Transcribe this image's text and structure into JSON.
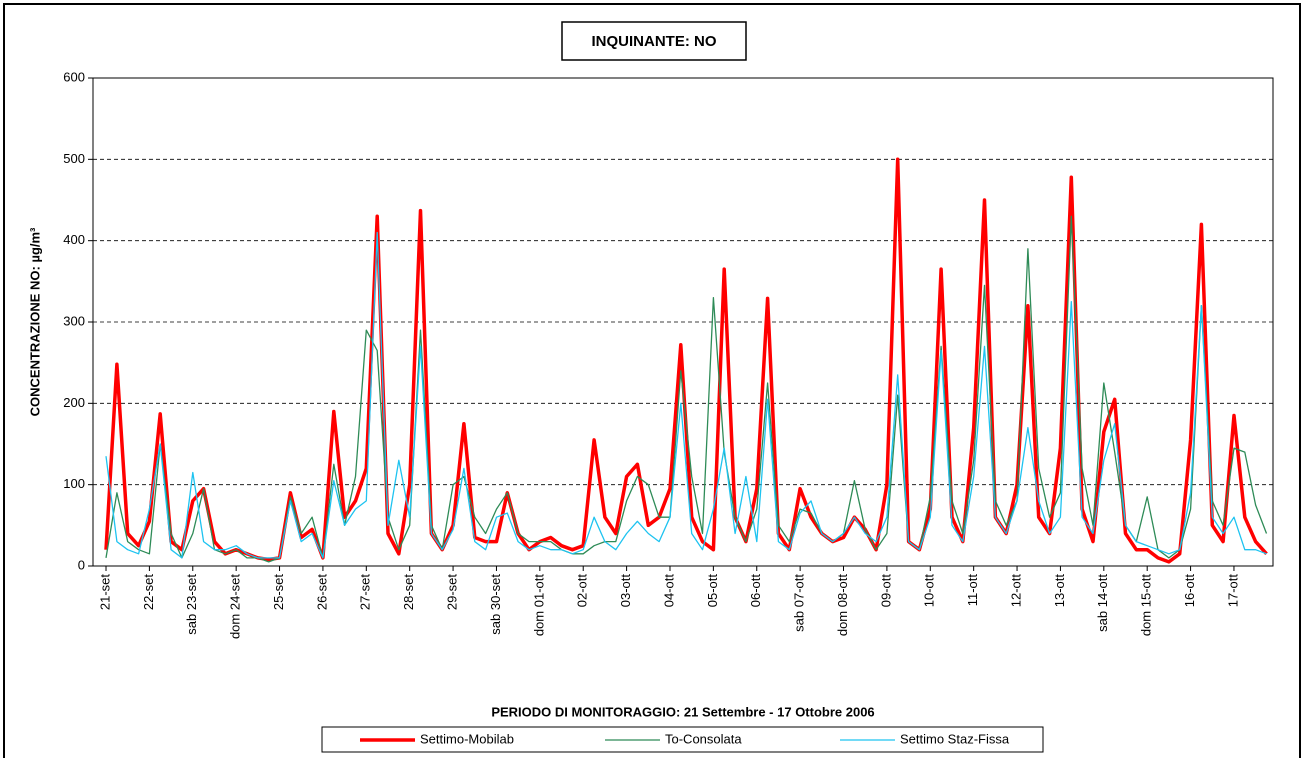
{
  "chart_data": {
    "type": "line",
    "title": "INQUINANTE: NO",
    "y_label": "CONCENTRAZIONE NO:  µg/m³",
    "x_label": "PERIODO DI MONITORAGGIO: 21 Settembre - 17 Ottobre 2006",
    "ylim": [
      0,
      600
    ],
    "yticks": [
      0,
      100,
      200,
      300,
      400,
      500,
      600
    ],
    "grid": true,
    "xlim": [
      -0.3,
      26.9
    ],
    "xticks": [
      {
        "value": 0,
        "label": "21-set"
      },
      {
        "value": 1,
        "label": "22-set"
      },
      {
        "value": 2,
        "label": "sab 23-set"
      },
      {
        "value": 3,
        "label": "dom 24-set"
      },
      {
        "value": 4,
        "label": "25-set"
      },
      {
        "value": 5,
        "label": "26-set"
      },
      {
        "value": 6,
        "label": "27-set"
      },
      {
        "value": 7,
        "label": "28-set"
      },
      {
        "value": 8,
        "label": "29-set"
      },
      {
        "value": 9,
        "label": "sab 30-set"
      },
      {
        "value": 10,
        "label": "dom 01-ott"
      },
      {
        "value": 11,
        "label": "02-ott"
      },
      {
        "value": 12,
        "label": "03-ott"
      },
      {
        "value": 13,
        "label": "04-ott"
      },
      {
        "value": 14,
        "label": "05-ott"
      },
      {
        "value": 15,
        "label": "06-ott"
      },
      {
        "value": 16,
        "label": "sab 07-ott"
      },
      {
        "value": 17,
        "label": "dom 08-ott"
      },
      {
        "value": 18,
        "label": "09-ott"
      },
      {
        "value": 19,
        "label": "10-ott"
      },
      {
        "value": 20,
        "label": "11-ott"
      },
      {
        "value": 21,
        "label": "12-ott"
      },
      {
        "value": 22,
        "label": "13-ott"
      },
      {
        "value": 23,
        "label": "sab 14-ott"
      },
      {
        "value": 24,
        "label": "dom 15-ott"
      },
      {
        "value": 25,
        "label": "16-ott"
      },
      {
        "value": 26,
        "label": "17-ott"
      }
    ],
    "x": [
      0,
      0.25,
      0.5,
      0.75,
      1,
      1.25,
      1.5,
      1.75,
      2,
      2.25,
      2.5,
      2.75,
      3,
      3.25,
      3.5,
      3.75,
      4,
      4.25,
      4.5,
      4.75,
      5,
      5.25,
      5.5,
      5.75,
      6,
      6.25,
      6.5,
      6.75,
      7,
      7.25,
      7.5,
      7.75,
      8,
      8.25,
      8.5,
      8.75,
      9,
      9.25,
      9.5,
      9.75,
      10,
      10.25,
      10.5,
      10.75,
      11,
      11.25,
      11.5,
      11.75,
      12,
      12.25,
      12.5,
      12.75,
      13,
      13.25,
      13.5,
      13.75,
      14,
      14.25,
      14.5,
      14.75,
      15,
      15.25,
      15.5,
      15.75,
      16,
      16.25,
      16.5,
      16.75,
      17,
      17.25,
      17.5,
      17.75,
      18,
      18.25,
      18.5,
      18.75,
      19,
      19.25,
      19.5,
      19.75,
      20,
      20.25,
      20.5,
      20.75,
      21,
      21.25,
      21.5,
      21.75,
      22,
      22.25,
      22.5,
      22.75,
      23,
      23.25,
      23.5,
      23.75,
      24,
      24.25,
      24.5,
      24.75,
      25,
      25.25,
      25.5,
      25.75,
      26,
      26.25,
      26.5,
      26.75
    ],
    "series": [
      {
        "name": "Settimo-Mobilab",
        "color": "#ff0000",
        "width": 3.5,
        "values": [
          20,
          248,
          40,
          25,
          55,
          187,
          30,
          20,
          80,
          95,
          30,
          15,
          20,
          15,
          10,
          8,
          10,
          90,
          35,
          45,
          10,
          190,
          60,
          80,
          120,
          430,
          40,
          15,
          100,
          437,
          40,
          20,
          50,
          175,
          35,
          30,
          30,
          90,
          40,
          20,
          30,
          35,
          25,
          20,
          25,
          155,
          60,
          40,
          110,
          125,
          50,
          60,
          95,
          272,
          60,
          30,
          20,
          365,
          60,
          30,
          95,
          329,
          40,
          20,
          95,
          60,
          40,
          30,
          35,
          60,
          45,
          20,
          100,
          500,
          30,
          20,
          70,
          365,
          60,
          30,
          170,
          450,
          60,
          40,
          100,
          320,
          60,
          40,
          145,
          478,
          70,
          30,
          165,
          205,
          40,
          20,
          20,
          10,
          5,
          15,
          155,
          420,
          50,
          30,
          185,
          60,
          30,
          15
        ]
      },
      {
        "name": "To-Consolata",
        "color": "#2e8b57",
        "width": 1.3,
        "values": [
          10,
          90,
          30,
          20,
          15,
          150,
          40,
          10,
          40,
          95,
          20,
          15,
          20,
          10,
          10,
          5,
          10,
          85,
          40,
          60,
          10,
          125,
          50,
          110,
          290,
          265,
          60,
          20,
          50,
          290,
          50,
          20,
          100,
          110,
          60,
          40,
          70,
          90,
          40,
          30,
          30,
          30,
          20,
          15,
          15,
          25,
          30,
          30,
          80,
          110,
          100,
          60,
          60,
          240,
          110,
          40,
          330,
          140,
          60,
          30,
          70,
          225,
          50,
          30,
          70,
          65,
          40,
          30,
          40,
          105,
          45,
          20,
          40,
          210,
          30,
          20,
          85,
          270,
          80,
          40,
          130,
          345,
          80,
          50,
          80,
          390,
          120,
          60,
          90,
          430,
          120,
          50,
          225,
          140,
          50,
          30,
          85,
          20,
          10,
          20,
          70,
          320,
          80,
          50,
          145,
          140,
          75,
          40
        ]
      },
      {
        "name": "Settimo Staz-Fissa",
        "color": "#1ec3f0",
        "width": 1.3,
        "values": [
          135,
          30,
          20,
          15,
          70,
          150,
          20,
          10,
          115,
          30,
          20,
          20,
          25,
          15,
          10,
          10,
          10,
          80,
          30,
          40,
          10,
          105,
          50,
          70,
          80,
          410,
          50,
          130,
          60,
          270,
          40,
          20,
          45,
          120,
          30,
          20,
          60,
          65,
          30,
          20,
          25,
          20,
          20,
          15,
          20,
          60,
          30,
          20,
          40,
          55,
          40,
          30,
          60,
          200,
          40,
          20,
          70,
          145,
          40,
          110,
          30,
          205,
          30,
          20,
          65,
          80,
          40,
          30,
          40,
          60,
          40,
          30,
          60,
          235,
          30,
          20,
          60,
          265,
          50,
          30,
          110,
          270,
          60,
          40,
          80,
          170,
          80,
          40,
          60,
          325,
          60,
          40,
          130,
          175,
          50,
          30,
          25,
          20,
          15,
          20,
          90,
          320,
          60,
          40,
          60,
          20,
          20,
          15
        ]
      }
    ]
  }
}
